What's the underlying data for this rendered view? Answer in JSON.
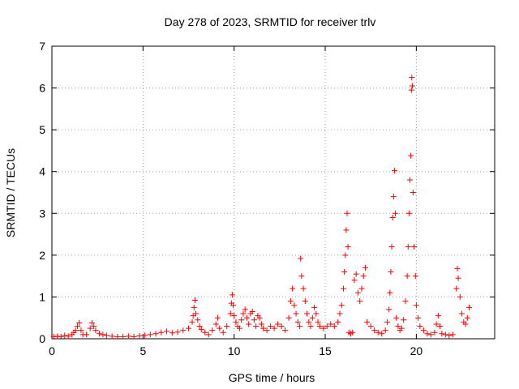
{
  "chart_data": {
    "type": "scatter",
    "title": "Day 278 of 2023, SRMTID for receiver trlv",
    "xlabel": "GPS time / hours",
    "ylabel": "SRMTID / TECUs",
    "xlim": [
      0,
      24.3
    ],
    "ylim": [
      0,
      7
    ],
    "x_ticks": [
      0,
      5,
      10,
      15,
      20
    ],
    "y_ticks": [
      0,
      1,
      2,
      3,
      4,
      5,
      6,
      7
    ],
    "grid": true,
    "legend": "none",
    "marker": "plus",
    "series": [
      {
        "color": "#ff0000",
        "points": [
          [
            0.1,
            0.05
          ],
          [
            0.3,
            0.06
          ],
          [
            0.5,
            0.05
          ],
          [
            0.7,
            0.08
          ],
          [
            0.9,
            0.06
          ],
          [
            1.1,
            0.1
          ],
          [
            1.2,
            0.15
          ],
          [
            1.3,
            0.2
          ],
          [
            1.4,
            0.3
          ],
          [
            1.5,
            0.38
          ],
          [
            1.6,
            0.2
          ],
          [
            1.7,
            0.1
          ],
          [
            1.9,
            0.1
          ],
          [
            2.1,
            0.25
          ],
          [
            2.2,
            0.38
          ],
          [
            2.3,
            0.3
          ],
          [
            2.4,
            0.2
          ],
          [
            2.6,
            0.12
          ],
          [
            2.8,
            0.1
          ],
          [
            3.0,
            0.08
          ],
          [
            3.3,
            0.06
          ],
          [
            3.6,
            0.05
          ],
          [
            3.9,
            0.05
          ],
          [
            4.2,
            0.06
          ],
          [
            4.5,
            0.05
          ],
          [
            4.8,
            0.07
          ],
          [
            5.1,
            0.08
          ],
          [
            5.4,
            0.1
          ],
          [
            5.7,
            0.12
          ],
          [
            6.0,
            0.15
          ],
          [
            6.3,
            0.18
          ],
          [
            6.6,
            0.14
          ],
          [
            6.9,
            0.16
          ],
          [
            7.2,
            0.2
          ],
          [
            7.5,
            0.25
          ],
          [
            7.7,
            0.4
          ],
          [
            7.75,
            0.55
          ],
          [
            7.8,
            0.75
          ],
          [
            7.85,
            0.92
          ],
          [
            7.9,
            0.6
          ],
          [
            8.0,
            0.45
          ],
          [
            8.1,
            0.3
          ],
          [
            8.2,
            0.22
          ],
          [
            8.4,
            0.15
          ],
          [
            8.6,
            0.1
          ],
          [
            8.8,
            0.2
          ],
          [
            9.0,
            0.35
          ],
          [
            9.1,
            0.5
          ],
          [
            9.2,
            0.25
          ],
          [
            9.4,
            0.15
          ],
          [
            9.6,
            0.3
          ],
          [
            9.8,
            0.6
          ],
          [
            9.85,
            0.85
          ],
          [
            9.9,
            1.05
          ],
          [
            9.95,
            0.8
          ],
          [
            10.0,
            0.55
          ],
          [
            10.1,
            0.4
          ],
          [
            10.2,
            0.3
          ],
          [
            10.3,
            0.25
          ],
          [
            10.4,
            0.45
          ],
          [
            10.5,
            0.6
          ],
          [
            10.6,
            0.7
          ],
          [
            10.7,
            0.5
          ],
          [
            10.8,
            0.35
          ],
          [
            10.9,
            0.6
          ],
          [
            11.0,
            0.65
          ],
          [
            11.1,
            0.45
          ],
          [
            11.2,
            0.3
          ],
          [
            11.3,
            0.55
          ],
          [
            11.4,
            0.5
          ],
          [
            11.5,
            0.35
          ],
          [
            11.6,
            0.25
          ],
          [
            11.8,
            0.2
          ],
          [
            12.0,
            0.3
          ],
          [
            12.2,
            0.25
          ],
          [
            12.4,
            0.35
          ],
          [
            12.6,
            0.3
          ],
          [
            12.8,
            0.2
          ],
          [
            13.0,
            0.5
          ],
          [
            13.1,
            0.9
          ],
          [
            13.2,
            1.2
          ],
          [
            13.3,
            0.8
          ],
          [
            13.4,
            0.6
          ],
          [
            13.5,
            0.4
          ],
          [
            13.6,
            0.3
          ],
          [
            13.65,
            1.92
          ],
          [
            13.7,
            1.5
          ],
          [
            13.8,
            1.2
          ],
          [
            13.9,
            0.9
          ],
          [
            14.0,
            0.6
          ],
          [
            14.1,
            0.4
          ],
          [
            14.2,
            0.3
          ],
          [
            14.3,
            0.5
          ],
          [
            14.4,
            0.75
          ],
          [
            14.5,
            0.6
          ],
          [
            14.6,
            0.4
          ],
          [
            14.7,
            0.3
          ],
          [
            14.9,
            0.25
          ],
          [
            15.1,
            0.3
          ],
          [
            15.3,
            0.35
          ],
          [
            15.5,
            0.3
          ],
          [
            15.7,
            0.4
          ],
          [
            15.8,
            0.6
          ],
          [
            15.9,
            0.8
          ],
          [
            16.0,
            1.2
          ],
          [
            16.05,
            1.6
          ],
          [
            16.1,
            2.0
          ],
          [
            16.15,
            2.6
          ],
          [
            16.2,
            3.0
          ],
          [
            16.25,
            2.2
          ],
          [
            16.3,
            0.15
          ],
          [
            16.4,
            0.12
          ],
          [
            16.5,
            0.15
          ],
          [
            16.6,
            1.4
          ],
          [
            16.7,
            1.55
          ],
          [
            16.8,
            1.1
          ],
          [
            16.9,
            0.9
          ],
          [
            17.0,
            1.2
          ],
          [
            17.1,
            1.5
          ],
          [
            17.2,
            1.7
          ],
          [
            17.3,
            0.4
          ],
          [
            17.5,
            0.3
          ],
          [
            17.7,
            0.2
          ],
          [
            17.9,
            0.15
          ],
          [
            18.1,
            0.12
          ],
          [
            18.3,
            0.2
          ],
          [
            18.4,
            0.4
          ],
          [
            18.5,
            0.7
          ],
          [
            18.55,
            1.1
          ],
          [
            18.6,
            1.6
          ],
          [
            18.65,
            2.2
          ],
          [
            18.7,
            2.9
          ],
          [
            18.75,
            3.4
          ],
          [
            18.8,
            4.02
          ],
          [
            18.85,
            3.0
          ],
          [
            18.9,
            0.5
          ],
          [
            19.0,
            0.3
          ],
          [
            19.1,
            0.2
          ],
          [
            19.2,
            0.25
          ],
          [
            19.3,
            0.45
          ],
          [
            19.4,
            0.9
          ],
          [
            19.5,
            1.5
          ],
          [
            19.55,
            2.2
          ],
          [
            19.6,
            3.0
          ],
          [
            19.65,
            3.8
          ],
          [
            19.7,
            4.38
          ],
          [
            19.73,
            5.95
          ],
          [
            19.75,
            6.25
          ],
          [
            19.78,
            6.05
          ],
          [
            19.82,
            3.5
          ],
          [
            19.88,
            2.2
          ],
          [
            19.95,
            1.5
          ],
          [
            20.0,
            0.8
          ],
          [
            20.1,
            0.5
          ],
          [
            20.2,
            0.3
          ],
          [
            20.4,
            0.2
          ],
          [
            20.6,
            0.12
          ],
          [
            20.8,
            0.1
          ],
          [
            21.0,
            0.15
          ],
          [
            21.1,
            0.35
          ],
          [
            21.2,
            0.55
          ],
          [
            21.3,
            0.3
          ],
          [
            21.4,
            0.12
          ],
          [
            21.6,
            0.1
          ],
          [
            21.8,
            0.08
          ],
          [
            22.0,
            0.1
          ],
          [
            22.2,
            1.2
          ],
          [
            22.25,
            1.68
          ],
          [
            22.3,
            1.45
          ],
          [
            22.4,
            1.0
          ],
          [
            22.5,
            0.6
          ],
          [
            22.6,
            0.4
          ],
          [
            22.7,
            0.35
          ],
          [
            22.8,
            0.5
          ],
          [
            22.9,
            0.75
          ]
        ]
      }
    ]
  }
}
